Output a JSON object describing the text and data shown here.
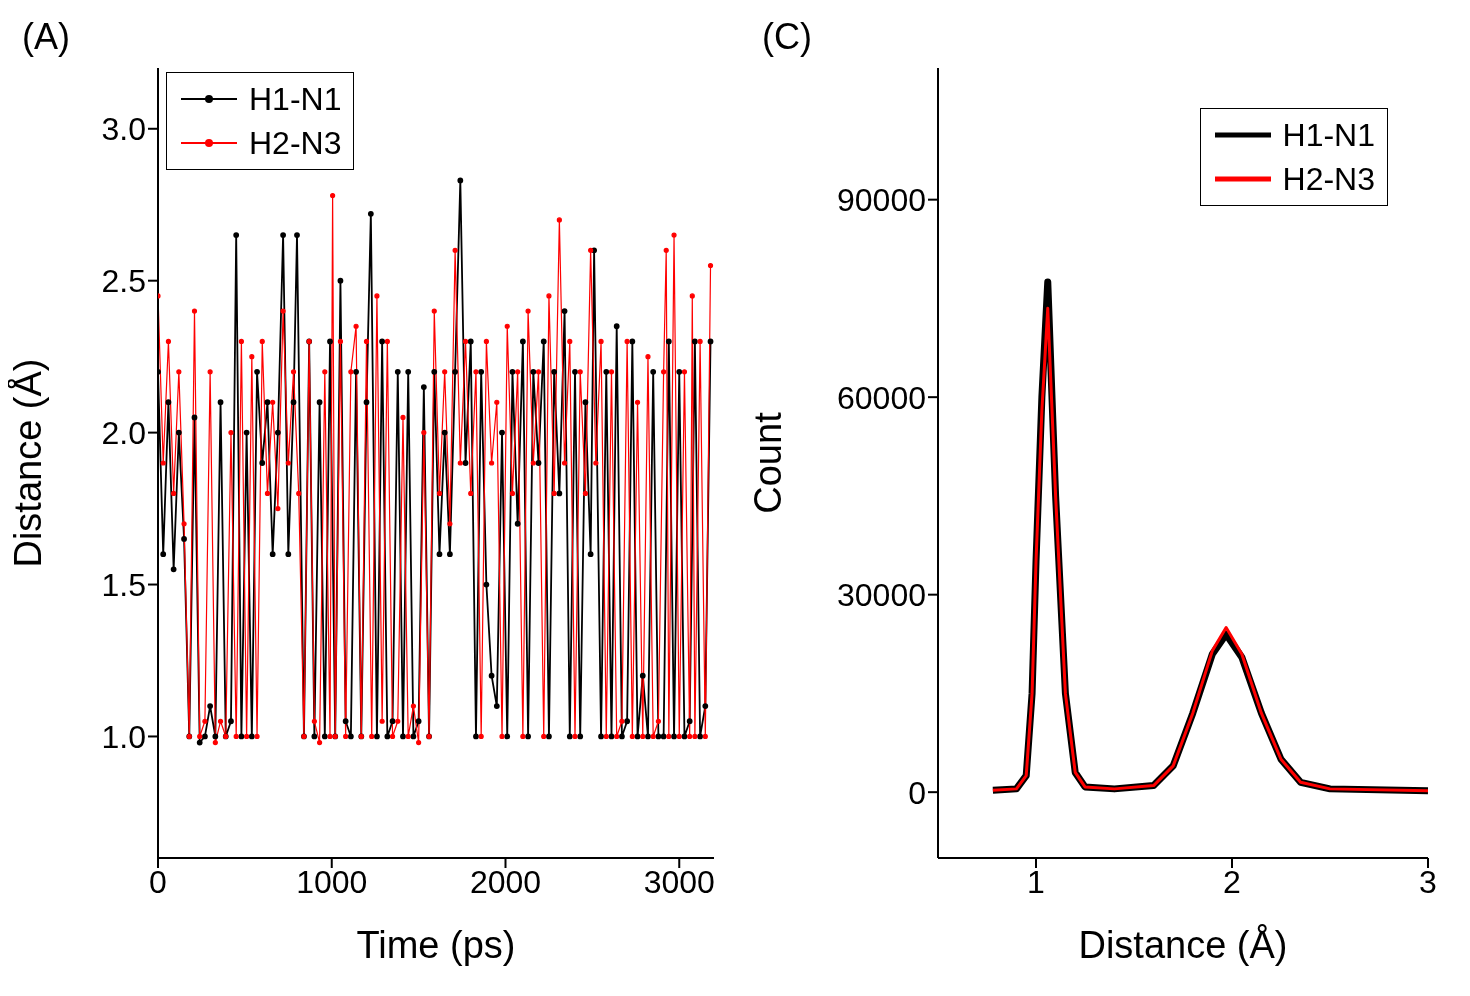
{
  "chart_data": [
    {
      "type": "line",
      "title": "(A)",
      "xlabel": "Time (ps)",
      "ylabel": "Distance (Å)",
      "xlim": [
        0,
        3200
      ],
      "xticks": [
        0,
        1000,
        2000,
        3000
      ],
      "ylim": [
        0.6,
        3.2
      ],
      "yticks": [
        {
          "value": 1,
          "label": "1.0"
        },
        {
          "value": 1.5,
          "label": "1.5"
        },
        {
          "value": 2,
          "label": "2.0"
        },
        {
          "value": 2.5,
          "label": "2.5"
        },
        {
          "value": 3,
          "label": "3.0"
        }
      ],
      "legend": "top left",
      "marker": "circle",
      "line_style": "solid",
      "series": [
        {
          "name": "H1-N1",
          "color": "#000000",
          "x": [
            0,
            30,
            60,
            90,
            120,
            150,
            180,
            210,
            240,
            270,
            300,
            330,
            360,
            390,
            420,
            450,
            480,
            510,
            540,
            570,
            600,
            630,
            660,
            690,
            720,
            750,
            780,
            800,
            840,
            870,
            900,
            930,
            960,
            990,
            1020,
            1050,
            1080,
            1110,
            1140,
            1170,
            1200,
            1225,
            1260,
            1290,
            1320,
            1350,
            1380,
            1410,
            1440,
            1470,
            1500,
            1530,
            1560,
            1590,
            1620,
            1650,
            1680,
            1710,
            1740,
            1770,
            1800,
            1830,
            1860,
            1890,
            1920,
            1950,
            1980,
            2010,
            2040,
            2070,
            2100,
            2130,
            2160,
            2190,
            2220,
            2250,
            2280,
            2310,
            2340,
            2370,
            2400,
            2430,
            2460,
            2490,
            2510,
            2550,
            2580,
            2610,
            2640,
            2670,
            2700,
            2730,
            2760,
            2790,
            2820,
            2850,
            2880,
            2910,
            2940,
            2970,
            3000,
            3030,
            3060,
            3090,
            3120,
            3150,
            3180
          ],
          "values": [
            2.2,
            1.6,
            2.1,
            1.55,
            2.0,
            1.65,
            1.0,
            2.05,
            0.98,
            1.0,
            1.1,
            1.0,
            2.1,
            1.0,
            1.05,
            2.65,
            1.0,
            2.0,
            1.0,
            2.2,
            1.9,
            2.1,
            1.6,
            2.0,
            2.65,
            1.6,
            2.1,
            2.65,
            1.0,
            2.3,
            1.0,
            2.1,
            1.0,
            2.3,
            1.0,
            2.5,
            1.05,
            1.0,
            2.2,
            1.0,
            2.1,
            2.72,
            1.0,
            2.3,
            1.0,
            1.05,
            2.2,
            1.0,
            2.2,
            1.0,
            1.05,
            2.15,
            1.0,
            2.2,
            1.6,
            2.0,
            1.6,
            2.2,
            2.83,
            1.9,
            2.3,
            1.0,
            2.2,
            1.5,
            1.2,
            1.1,
            2.0,
            1.0,
            2.2,
            1.7,
            2.3,
            1.0,
            2.2,
            1.9,
            2.3,
            1.0,
            2.2,
            1.8,
            2.4,
            1.0,
            2.2,
            1.0,
            2.1,
            1.6,
            2.6,
            1.0,
            2.2,
            1.0,
            2.35,
            1.0,
            1.05,
            2.3,
            1.0,
            1.2,
            1.0,
            2.2,
            1.0,
            1.0,
            2.3,
            1.0,
            2.2,
            1.0,
            1.05,
            2.3,
            1.0,
            1.1,
            2.3
          ]
        },
        {
          "name": "H2-N3",
          "color": "#ff0000",
          "x": [
            0,
            30,
            60,
            90,
            120,
            150,
            180,
            210,
            240,
            270,
            300,
            330,
            360,
            390,
            420,
            450,
            480,
            510,
            540,
            570,
            600,
            630,
            660,
            690,
            720,
            750,
            780,
            810,
            840,
            870,
            900,
            930,
            960,
            990,
            1005,
            1020,
            1050,
            1080,
            1110,
            1140,
            1170,
            1200,
            1230,
            1260,
            1290,
            1320,
            1350,
            1380,
            1410,
            1440,
            1470,
            1500,
            1530,
            1560,
            1590,
            1620,
            1650,
            1680,
            1710,
            1740,
            1770,
            1800,
            1830,
            1860,
            1890,
            1920,
            1950,
            1980,
            2010,
            2040,
            2070,
            2100,
            2130,
            2160,
            2190,
            2220,
            2250,
            2280,
            2310,
            2340,
            2370,
            2400,
            2430,
            2460,
            2490,
            2520,
            2550,
            2580,
            2610,
            2640,
            2670,
            2700,
            2730,
            2760,
            2790,
            2820,
            2850,
            2880,
            2910,
            2925,
            2940,
            2970,
            3000,
            3030,
            3060,
            3075,
            3090,
            3120,
            3150,
            3180
          ],
          "values": [
            2.45,
            1.9,
            2.3,
            1.8,
            2.2,
            1.7,
            1.0,
            2.4,
            1.0,
            1.05,
            2.2,
            0.98,
            1.05,
            1.0,
            2.0,
            1.0,
            2.3,
            1.0,
            2.25,
            1.0,
            2.3,
            1.8,
            2.1,
            1.75,
            2.4,
            1.9,
            2.2,
            1.8,
            1.0,
            2.3,
            1.05,
            0.98,
            2.2,
            1.0,
            2.78,
            1.0,
            2.3,
            1.0,
            2.2,
            2.35,
            1.0,
            2.3,
            1.0,
            2.45,
            1.05,
            2.3,
            1.0,
            1.05,
            2.05,
            1.0,
            1.1,
            0.98,
            2.0,
            1.0,
            2.4,
            1.8,
            2.2,
            1.7,
            2.6,
            1.9,
            2.3,
            1.8,
            2.2,
            1.0,
            2.3,
            1.9,
            2.1,
            1.0,
            2.35,
            1.8,
            2.2,
            1.0,
            2.4,
            1.9,
            2.2,
            1.0,
            2.45,
            1.8,
            2.7,
            1.9,
            2.3,
            1.0,
            2.2,
            1.8,
            2.6,
            1.9,
            2.3,
            1.0,
            2.2,
            1.0,
            1.05,
            2.3,
            1.0,
            2.1,
            1.0,
            2.25,
            1.0,
            1.05,
            2.2,
            2.6,
            1.0,
            2.65,
            1.0,
            2.2,
            1.0,
            2.45,
            1.0,
            2.3,
            1.0,
            2.55
          ]
        }
      ]
    },
    {
      "type": "line",
      "title": "(C)",
      "xlabel": "Distance (Å)",
      "ylabel": "Count",
      "xlim": [
        0.5,
        3
      ],
      "xticks": [
        1,
        2,
        3
      ],
      "ylim": [
        -10000,
        110000
      ],
      "yticks": [
        0,
        30000,
        60000,
        90000
      ],
      "legend": "top right",
      "line_style": "solid",
      "series": [
        {
          "name": "H1-N1",
          "color": "#000000",
          "x": [
            0.78,
            0.9,
            0.95,
            0.98,
            1.0,
            1.03,
            1.06,
            1.1,
            1.15,
            1.2,
            1.25,
            1.4,
            1.6,
            1.7,
            1.8,
            1.9,
            1.97,
            2.05,
            2.15,
            2.25,
            2.35,
            2.5,
            3.0
          ],
          "values": [
            300,
            500,
            2500,
            15000,
            35000,
            60000,
            77500,
            45000,
            15000,
            3000,
            800,
            500,
            1000,
            4000,
            12000,
            21000,
            24000,
            20500,
            12000,
            5000,
            1500,
            500,
            200
          ]
        },
        {
          "name": "H2-N3",
          "color": "#ff0000",
          "x": [
            0.78,
            0.9,
            0.95,
            0.98,
            1.0,
            1.03,
            1.06,
            1.1,
            1.15,
            1.2,
            1.25,
            1.4,
            1.6,
            1.7,
            1.8,
            1.9,
            1.97,
            2.05,
            2.15,
            2.25,
            2.35,
            2.5,
            3.0
          ],
          "values": [
            300,
            500,
            2500,
            15000,
            35000,
            58000,
            73500,
            45000,
            15000,
            3000,
            800,
            500,
            1000,
            4000,
            12000,
            21500,
            25000,
            21000,
            12000,
            5000,
            1500,
            500,
            200
          ]
        }
      ]
    }
  ]
}
